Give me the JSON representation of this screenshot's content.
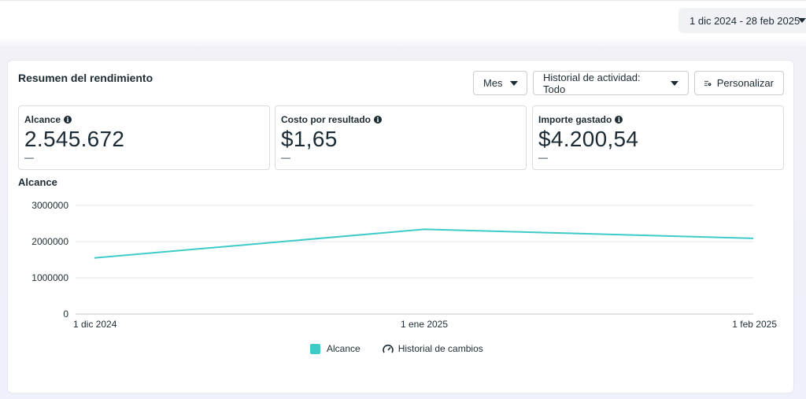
{
  "date_range": "1 dic 2024 - 28 feb 2025",
  "card": {
    "title": "Resumen del rendimiento",
    "buttons": {
      "period": "Mes",
      "activity": "Historial de actividad: Todo",
      "customize": "Personalizar"
    }
  },
  "metrics": [
    {
      "label": "Alcance",
      "value": "2.545.672",
      "delta": "—"
    },
    {
      "label": "Costo por resultado",
      "value": "$1,65",
      "delta": "—"
    },
    {
      "label": "Importe gastado",
      "value": "$4.200,54",
      "delta": "—"
    }
  ],
  "chart_data": {
    "type": "line",
    "title": "Alcance",
    "categories": [
      "1 dic 2024",
      "1 ene 2025",
      "1 feb 2025"
    ],
    "series": [
      {
        "name": "Alcance",
        "values": [
          1550000,
          2340000,
          2090000
        ],
        "color": "#3ecbc8"
      }
    ],
    "ylim": [
      0,
      3000000
    ],
    "yticks": [
      "0",
      "1000000",
      "2000000",
      "3000000"
    ],
    "grid": true,
    "legend": [
      {
        "label": "Alcance",
        "icon": "swatch"
      },
      {
        "label": "Historial de cambios",
        "icon": "gauge-icon"
      }
    ]
  }
}
